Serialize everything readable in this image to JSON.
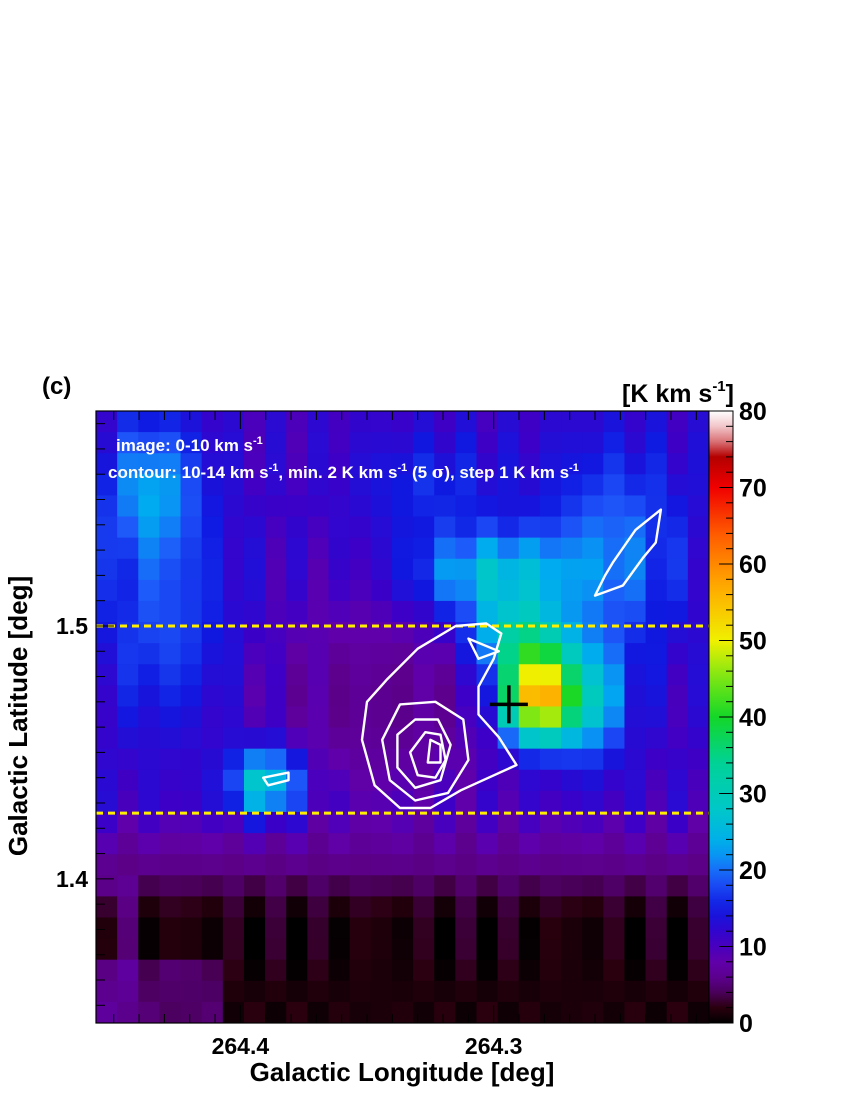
{
  "panel_label": "(c)",
  "image_label": "image: 0-10 km s",
  "image_label_sup": "-1",
  "contour_label_parts": [
    {
      "t": "contour: 10-14 km s"
    },
    {
      "t": "-1",
      "sup": true
    },
    {
      "t": ", min. 2 K km s"
    },
    {
      "t": "-1",
      "sup": true
    },
    {
      "t": " (5 "
    },
    {
      "t": "σ",
      "sym": true
    },
    {
      "t": "), step 1 K km s"
    },
    {
      "t": "-1",
      "sup": true
    }
  ],
  "colorbar_unit": "[K km s",
  "colorbar_unit_sup": "-1",
  "colorbar_unit_close": "]",
  "colors": {
    "threshold_line": "#ffee00",
    "contour": "#ffffff",
    "marker": "#000000"
  },
  "chart_data": {
    "type": "heatmap",
    "xlabel": "Galactic Longitude [deg]",
    "ylabel": "Galactic Latitude [deg]",
    "x_range": [
      264.457,
      264.215
    ],
    "y_range": [
      1.343,
      1.585
    ],
    "x_ticks": [
      264.4,
      264.3
    ],
    "x_tick_labels": [
      "264.4",
      "264.3"
    ],
    "y_ticks": [
      1.4,
      1.5
    ],
    "y_tick_labels": [
      "1.4",
      "1.5"
    ],
    "colorbar": {
      "range": [
        0,
        80
      ],
      "ticks": [
        0,
        10,
        20,
        30,
        40,
        50,
        60,
        70,
        80
      ],
      "tick_labels": [
        "0",
        "10",
        "20",
        "30",
        "40",
        "50",
        "60",
        "70",
        "80"
      ]
    },
    "grid_cols": 29,
    "grid_rows": 29,
    "dashed_latitudes": [
      1.5,
      1.426
    ],
    "marker": {
      "l": 264.294,
      "b": 1.469
    },
    "contours": [
      [
        [
          264.342,
          1.479
        ],
        [
          264.33,
          1.491
        ],
        [
          264.315,
          1.5
        ],
        [
          264.303,
          1.501
        ],
        [
          264.297,
          1.497
        ],
        [
          264.3,
          1.487
        ],
        [
          264.306,
          1.476
        ],
        [
          264.306,
          1.465
        ],
        [
          264.298,
          1.456
        ],
        [
          264.291,
          1.445
        ],
        [
          264.302,
          1.44
        ],
        [
          264.313,
          1.435
        ],
        [
          264.325,
          1.428
        ],
        [
          264.337,
          1.428
        ],
        [
          264.347,
          1.437
        ],
        [
          264.352,
          1.455
        ],
        [
          264.35,
          1.47
        ]
      ],
      [
        [
          264.337,
          1.469
        ],
        [
          264.323,
          1.47
        ],
        [
          264.312,
          1.463
        ],
        [
          264.31,
          1.447
        ],
        [
          264.318,
          1.434
        ],
        [
          264.331,
          1.431
        ],
        [
          264.341,
          1.439
        ],
        [
          264.344,
          1.455
        ]
      ],
      [
        [
          264.331,
          1.463
        ],
        [
          264.322,
          1.463
        ],
        [
          264.317,
          1.453
        ],
        [
          264.321,
          1.439
        ],
        [
          264.331,
          1.436
        ],
        [
          264.338,
          1.444
        ],
        [
          264.338,
          1.457
        ]
      ],
      [
        [
          264.327,
          1.458
        ],
        [
          264.321,
          1.457
        ],
        [
          264.319,
          1.447
        ],
        [
          264.323,
          1.44
        ],
        [
          264.33,
          1.441
        ],
        [
          264.333,
          1.45
        ]
      ],
      [
        [
          264.325,
          1.455
        ],
        [
          264.321,
          1.453
        ],
        [
          264.321,
          1.446
        ],
        [
          264.326,
          1.446
        ]
      ],
      [
        [
          264.298,
          1.49
        ],
        [
          264.31,
          1.495
        ],
        [
          264.306,
          1.487
        ]
      ],
      [
        [
          264.244,
          1.538
        ],
        [
          264.234,
          1.546
        ],
        [
          264.236,
          1.533
        ],
        [
          264.241,
          1.527
        ],
        [
          264.249,
          1.516
        ],
        [
          264.26,
          1.512
        ],
        [
          264.256,
          1.52
        ],
        [
          264.253,
          1.525
        ]
      ],
      [
        [
          264.391,
          1.44
        ],
        [
          264.381,
          1.442
        ],
        [
          264.381,
          1.439
        ],
        [
          264.389,
          1.437
        ]
      ]
    ]
  }
}
